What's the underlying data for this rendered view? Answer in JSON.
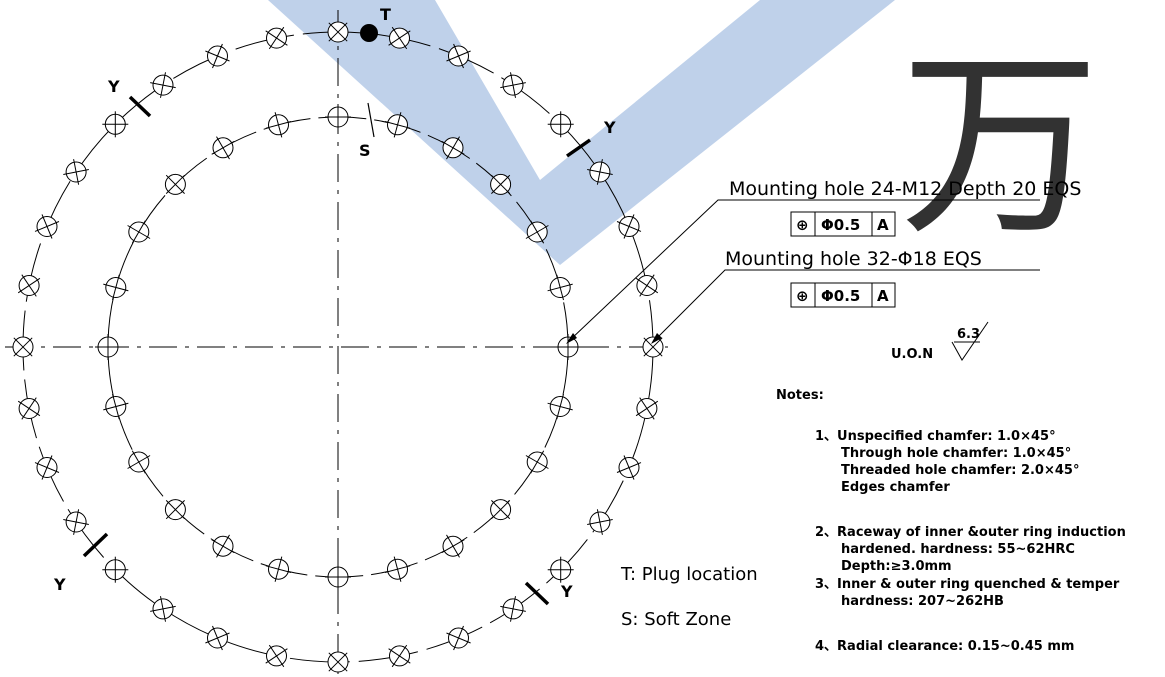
{
  "callouts": [
    {
      "text": "Mounting hole 24-M12 Depth 20 EQS",
      "fcf": {
        "symbol": "⊕",
        "tolerance": "Φ0.5",
        "datum": "A"
      }
    },
    {
      "text": "Mounting hole 32-Φ18 EQS",
      "fcf": {
        "symbol": "⊕",
        "tolerance": "Φ0.5",
        "datum": "A"
      }
    }
  ],
  "markers": {
    "t": "T",
    "s": "S",
    "y": "Y"
  },
  "surface_finish": {
    "prefix": "U.O.N",
    "value": "6.3"
  },
  "legend": {
    "t": "T: Plug location",
    "s": "S: Soft Zone"
  },
  "notes": {
    "title": "Notes:",
    "items": [
      [
        "1、Unspecified chamfer: 1.0×45°",
        "Through hole chamfer: 1.0×45°",
        "Threaded hole chamfer: 2.0×45°",
        "Edges chamfer"
      ],
      [
        "2、Raceway of inner &outer ring induction",
        "hardened. hardness: 55~62HRC",
        "Depth:≥3.0mm"
      ],
      [
        "3、Inner & outer ring quenched & temper",
        "hardness: 207~262HB"
      ],
      [
        "4、Radial clearance: 0.15~0.45 mm"
      ]
    ]
  },
  "watermark": {
    "glyph": "万",
    "color": "#3f6fb6"
  }
}
